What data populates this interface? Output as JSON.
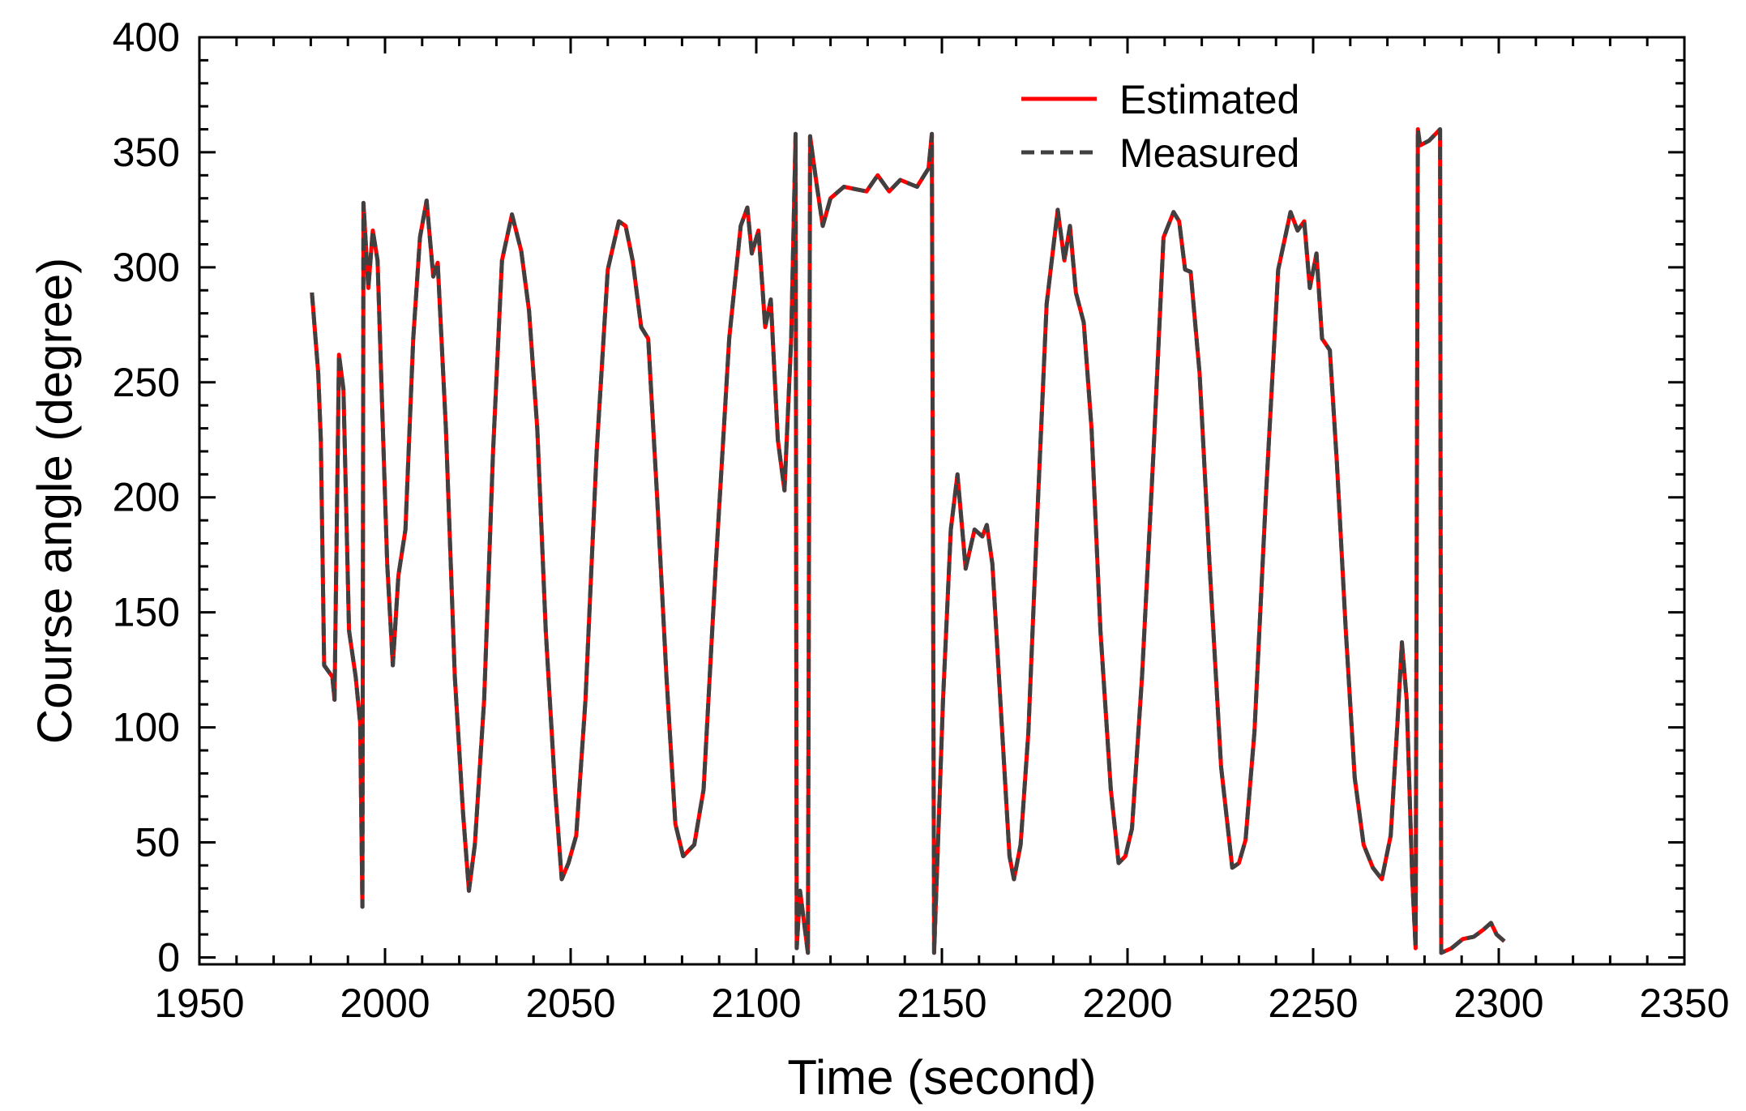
{
  "chart_data": {
    "type": "line",
    "xlabel": "Time (second)",
    "ylabel": "Course angle (degree)",
    "xlim": [
      1950,
      2350
    ],
    "ylim": [
      -3,
      400
    ],
    "xticks": [
      1950,
      2000,
      2050,
      2100,
      2150,
      2200,
      2250,
      2300,
      2350
    ],
    "yticks": [
      0,
      50,
      100,
      150,
      200,
      250,
      300,
      350,
      400
    ],
    "legend": "upper right",
    "x": [
      1980.3,
      1982,
      1982.7,
      1983.6,
      1985.8,
      1986.4,
      1987.6,
      1988.8,
      1990.3,
      1992.1,
      1993.3,
      1993.9,
      1994.2,
      1995.5,
      1996.7,
      1998,
      1999.4,
      2000.6,
      2002.1,
      2003.6,
      2005.5,
      2007.6,
      2009.4,
      2011.2,
      2013,
      2014.2,
      2016.4,
      2018.8,
      2021,
      2022.6,
      2024.2,
      2026.7,
      2029.1,
      2031.5,
      2034.2,
      2036.7,
      2038.8,
      2041,
      2043.3,
      2045.8,
      2047.6,
      2049.4,
      2051.5,
      2054,
      2057,
      2060,
      2063,
      2064.8,
      2066.7,
      2069,
      2070.9,
      2073.3,
      2075.8,
      2078.2,
      2080.3,
      2083.3,
      2085.8,
      2089.1,
      2092.7,
      2095.8,
      2097.6,
      2098.8,
      2100.6,
      2102.4,
      2103.9,
      2105.8,
      2107.6,
      2109.4,
      2110.6,
      2110.9,
      2111.8,
      2113.9,
      2114.5,
      2116.1,
      2117.9,
      2120,
      2123.6,
      2129.7,
      2132.7,
      2135.8,
      2138.8,
      2143.3,
      2146.4,
      2147.3,
      2147.9,
      2150.3,
      2152.4,
      2154.2,
      2156.4,
      2158.8,
      2160.9,
      2162.1,
      2163.6,
      2166.1,
      2168.2,
      2169.4,
      2171.2,
      2173.3,
      2175.8,
      2178.2,
      2181.2,
      2183,
      2184.5,
      2186.1,
      2188.2,
      2190.3,
      2192.7,
      2195.5,
      2197.6,
      2199.4,
      2201.2,
      2203.9,
      2207,
      2209.7,
      2212.4,
      2213.9,
      2215.5,
      2217,
      2219.4,
      2222.1,
      2225.2,
      2228.2,
      2230,
      2231.8,
      2234.2,
      2237.3,
      2240.6,
      2243.9,
      2245.8,
      2247.6,
      2249.1,
      2250.9,
      2252.4,
      2254.5,
      2256.4,
      2258.8,
      2261.2,
      2263.6,
      2266.1,
      2268.5,
      2270.9,
      2272.7,
      2273.9,
      2275.2,
      2276.7,
      2277.6,
      2278.2,
      2278.8,
      2281.2,
      2284.2,
      2284.5,
      2287.3,
      2290.3,
      2293.3,
      2295.8,
      2297.9,
      2299.4,
      2301.5
    ],
    "series": [
      {
        "name": "Estimated",
        "color": "#ff0000",
        "style": "solid",
        "values": [
          289,
          254,
          225,
          127,
          122,
          112,
          262,
          247,
          142,
          122,
          102,
          22,
          328,
          291,
          316,
          303,
          230,
          171,
          127,
          166,
          186,
          269,
          313,
          329,
          296,
          302,
          230,
          122,
          63,
          29,
          49,
          112,
          220,
          303,
          323,
          307,
          281,
          230,
          142,
          73,
          34,
          41,
          53,
          112,
          220,
          299,
          320,
          318,
          303,
          274,
          269,
          200,
          122,
          58,
          44,
          49,
          73,
          171,
          269,
          318,
          326,
          306,
          316,
          274,
          286,
          225,
          203,
          269,
          358,
          4,
          29,
          2,
          357,
          338,
          318,
          330,
          335,
          333,
          340,
          333,
          338,
          335,
          343,
          358,
          2,
          112,
          186,
          210,
          169,
          186,
          183,
          188,
          171,
          102,
          44,
          34,
          49,
          98,
          196,
          284,
          325,
          303,
          318,
          289,
          276,
          230,
          142,
          73,
          41,
          44,
          56,
          122,
          220,
          313,
          324,
          320,
          299,
          298,
          254,
          171,
          83,
          39,
          41,
          51,
          98,
          201,
          299,
          324,
          316,
          320,
          291,
          306,
          269,
          264,
          215,
          142,
          78,
          49,
          39,
          34,
          53,
          102,
          137,
          112,
          34,
          4,
          360,
          353,
          355,
          360,
          2,
          4,
          8,
          9,
          12,
          15,
          10,
          7
        ]
      },
      {
        "name": "Measured",
        "color": "#404040",
        "style": "dashed",
        "values": [
          289,
          254,
          225,
          127,
          122,
          112,
          262,
          247,
          142,
          122,
          102,
          22,
          328,
          291,
          316,
          303,
          230,
          171,
          127,
          166,
          186,
          269,
          313,
          329,
          296,
          302,
          230,
          122,
          63,
          29,
          49,
          112,
          220,
          303,
          323,
          307,
          281,
          230,
          142,
          73,
          34,
          41,
          53,
          112,
          220,
          299,
          320,
          318,
          303,
          274,
          269,
          200,
          122,
          58,
          44,
          49,
          73,
          171,
          269,
          318,
          326,
          306,
          316,
          274,
          286,
          225,
          203,
          269,
          358,
          4,
          29,
          2,
          357,
          338,
          318,
          330,
          335,
          333,
          340,
          333,
          338,
          335,
          343,
          358,
          2,
          112,
          186,
          210,
          169,
          186,
          183,
          188,
          171,
          102,
          44,
          34,
          49,
          98,
          196,
          284,
          325,
          303,
          318,
          289,
          276,
          230,
          142,
          73,
          41,
          44,
          56,
          122,
          220,
          313,
          324,
          320,
          299,
          298,
          254,
          171,
          83,
          39,
          41,
          51,
          98,
          201,
          299,
          324,
          316,
          320,
          291,
          306,
          269,
          264,
          215,
          142,
          78,
          49,
          39,
          34,
          53,
          102,
          137,
          112,
          34,
          4,
          360,
          353,
          355,
          360,
          2,
          4,
          8,
          9,
          12,
          15,
          10,
          7
        ]
      }
    ]
  }
}
